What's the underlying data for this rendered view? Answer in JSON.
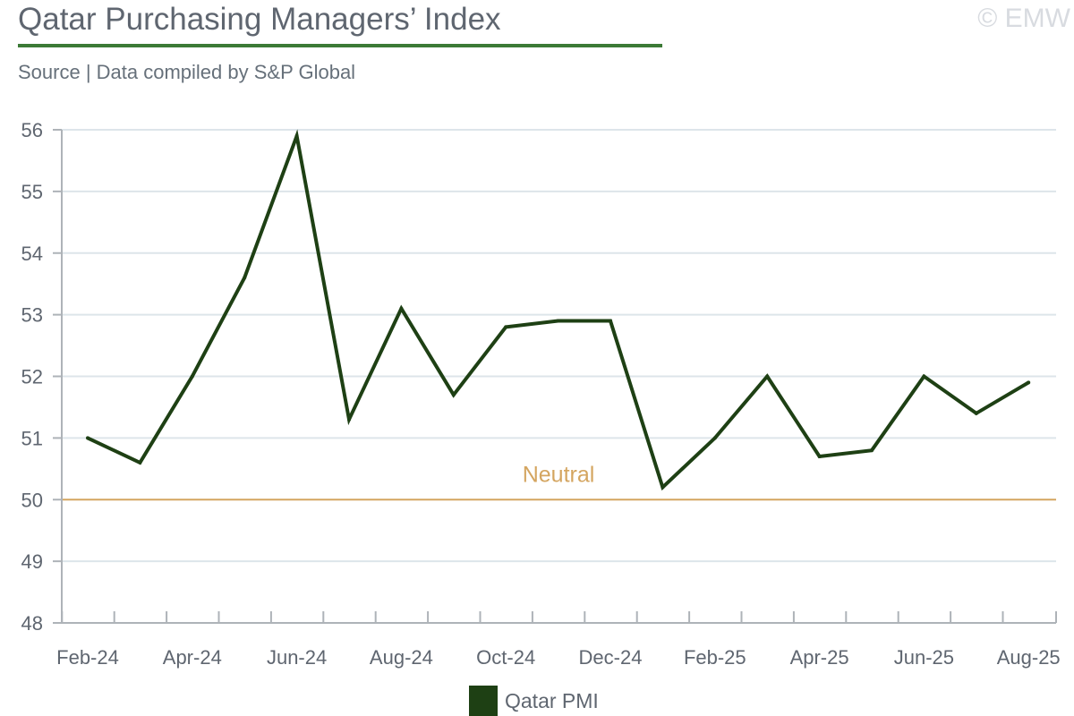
{
  "header": {
    "title": "Qatar Purchasing Managers’ Index",
    "subtitle": "Source | Data compiled by S&P Global",
    "watermark": "© EMW"
  },
  "colors": {
    "series": "#1e4014",
    "neutral": "#d4a560",
    "grid": "#dde5ea",
    "axis": "#aeb3b8",
    "title_underline": "#3c7a36"
  },
  "chart_data": {
    "type": "line",
    "title": "Qatar Purchasing Managers’ Index",
    "subtitle": "Source | Data compiled by S&P Global",
    "xlabel": "",
    "ylabel": "",
    "ylim": [
      48,
      56
    ],
    "yticks": [
      48,
      49,
      50,
      51,
      52,
      53,
      54,
      55,
      56
    ],
    "grid": true,
    "legend_position": "bottom-center",
    "categories": [
      "Feb-24",
      "Mar-24",
      "Apr-24",
      "May-24",
      "Jun-24",
      "Jul-24",
      "Aug-24",
      "Sep-24",
      "Oct-24",
      "Nov-24",
      "Dec-24",
      "Jan-25",
      "Feb-25",
      "Mar-25",
      "Apr-25",
      "May-25",
      "Jun-25",
      "Jul-25",
      "Aug-25"
    ],
    "x_tick_labels": [
      "Feb-24",
      "Apr-24",
      "Jun-24",
      "Aug-24",
      "Oct-24",
      "Dec-24",
      "Feb-25",
      "Apr-25",
      "Jun-25",
      "Aug-25"
    ],
    "series": [
      {
        "name": "Qatar PMI",
        "values": [
          51.0,
          50.6,
          52.0,
          53.6,
          55.9,
          51.3,
          53.1,
          51.7,
          52.8,
          52.9,
          52.9,
          50.2,
          51.0,
          52.0,
          50.7,
          50.8,
          52.0,
          51.4,
          51.9
        ]
      }
    ],
    "reference_line": {
      "value": 50,
      "label": "Neutral"
    }
  }
}
